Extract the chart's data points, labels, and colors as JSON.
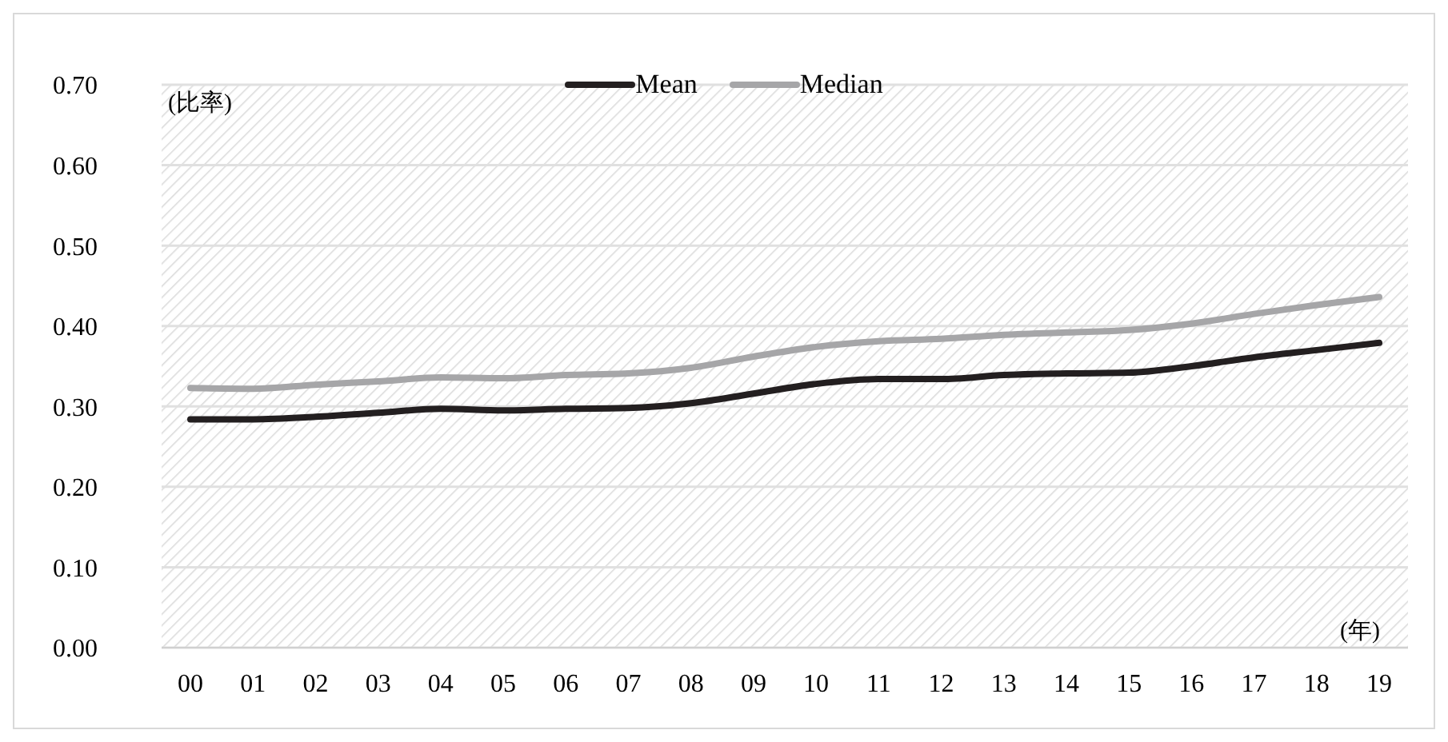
{
  "chart_data": {
    "type": "line",
    "xlabel": "(年)",
    "ylabel": "(比率)",
    "categories": [
      "00",
      "01",
      "02",
      "03",
      "04",
      "05",
      "06",
      "07",
      "08",
      "09",
      "10",
      "11",
      "12",
      "13",
      "14",
      "15",
      "16",
      "17",
      "18",
      "19"
    ],
    "series": [
      {
        "name": "Mean",
        "color": "#231f20",
        "values": [
          0.284,
          0.284,
          0.287,
          0.292,
          0.297,
          0.295,
          0.297,
          0.298,
          0.304,
          0.316,
          0.328,
          0.334,
          0.334,
          0.339,
          0.341,
          0.342,
          0.35,
          0.361,
          0.37,
          0.379
        ]
      },
      {
        "name": "Median",
        "color": "#a6a6a8",
        "values": [
          0.323,
          0.322,
          0.327,
          0.331,
          0.336,
          0.335,
          0.339,
          0.341,
          0.348,
          0.362,
          0.374,
          0.381,
          0.384,
          0.389,
          0.392,
          0.395,
          0.403,
          0.415,
          0.426,
          0.436
        ]
      }
    ],
    "ylim": [
      0,
      0.7
    ],
    "yticks": [
      {
        "value": 0,
        "label": "0.00"
      },
      {
        "value": 0.1,
        "label": "0.10"
      },
      {
        "value": 0.2,
        "label": "0.20"
      },
      {
        "value": 0.3,
        "label": "0.30"
      },
      {
        "value": 0.4,
        "label": "0.40"
      },
      {
        "value": 0.5,
        "label": "0.50"
      },
      {
        "value": 0.6,
        "label": "0.60"
      },
      {
        "value": 0.7,
        "label": "0.70"
      }
    ],
    "grid": "y",
    "legend": "top",
    "marker": "none",
    "line_style": "solid"
  }
}
